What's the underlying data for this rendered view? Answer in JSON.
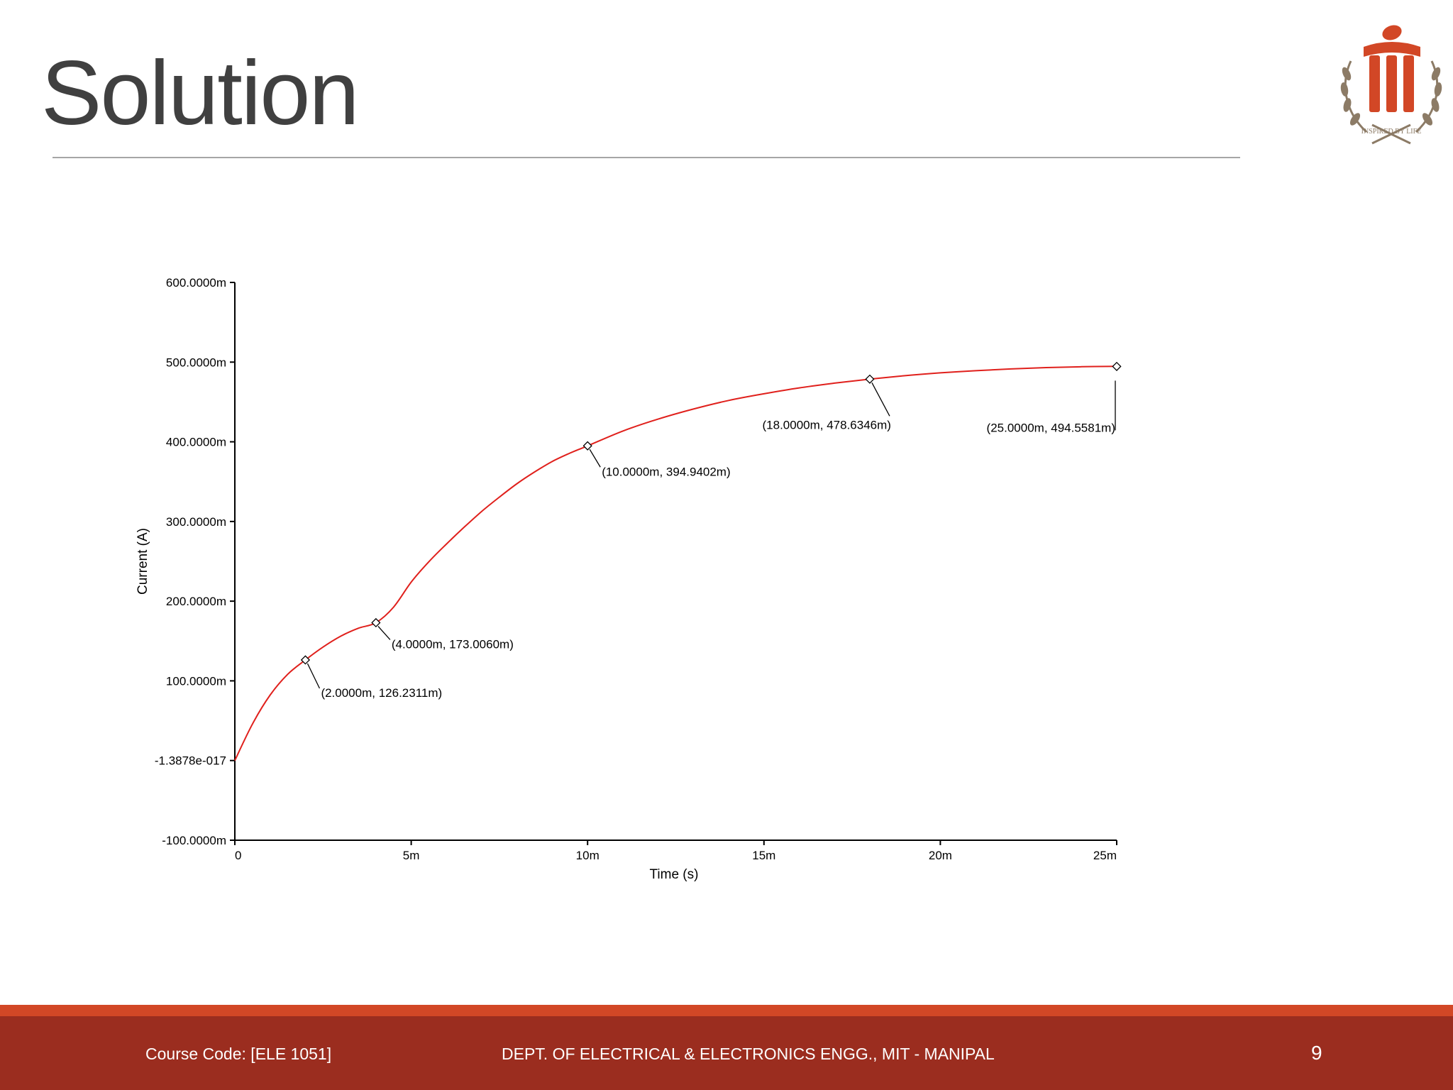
{
  "slide": {
    "title": "Solution"
  },
  "footer": {
    "course_code": "Course Code: [ELE 1051]",
    "department": "DEPT. OF ELECTRICAL & ELECTRONICS ENGG., MIT - MANIPAL",
    "page_number": "9"
  },
  "logo": {
    "icon": "manipal-institute-logo",
    "motto": "INSPIRED BY LIFE",
    "colors": {
      "primary": "#d24726",
      "wreath": "#8c7b66"
    }
  },
  "colors": {
    "curve": "#e0201c",
    "axis": "#000000",
    "footer_bar": "#9b2d1f",
    "footer_stripe": "#d24726",
    "title": "#404040"
  },
  "chart_data": {
    "type": "line",
    "title": "",
    "xlabel": "Time (s)",
    "ylabel": "Current (A)",
    "xlim": [
      0,
      0.025
    ],
    "ylim": [
      -0.1,
      0.6
    ],
    "grid": false,
    "x_ticks": [
      {
        "value": 0,
        "label": "0"
      },
      {
        "value": 0.005,
        "label": "5m"
      },
      {
        "value": 0.01,
        "label": "10m"
      },
      {
        "value": 0.015,
        "label": "15m"
      },
      {
        "value": 0.02,
        "label": "20m"
      },
      {
        "value": 0.025,
        "label": "25m"
      }
    ],
    "y_ticks": [
      {
        "value": 0.6,
        "label": "600.0000m"
      },
      {
        "value": 0.5,
        "label": "500.0000m"
      },
      {
        "value": 0.4,
        "label": "400.0000m"
      },
      {
        "value": 0.3,
        "label": "300.0000m"
      },
      {
        "value": 0.2,
        "label": "200.0000m"
      },
      {
        "value": 0.1,
        "label": "100.0000m"
      },
      {
        "value": 0,
        "label": "-1.3878e-017"
      },
      {
        "value": -0.1,
        "label": "-100.0000m"
      }
    ],
    "series": [
      {
        "x": [
          0,
          0.0005,
          0.001,
          0.0015,
          0.002,
          0.0025,
          0.003,
          0.0035,
          0.004,
          0.0045,
          0.005,
          0.0055,
          0.006,
          0.0065,
          0.007,
          0.0075,
          0.008,
          0.0085,
          0.009,
          0.0095,
          0.01,
          0.011,
          0.012,
          0.013,
          0.014,
          0.015,
          0.016,
          0.017,
          0.018,
          0.019,
          0.02,
          0.021,
          0.022,
          0.023,
          0.024,
          0.025
        ],
        "values": [
          0,
          0.0459,
          0.0821,
          0.1083,
          0.1262,
          0.1424,
          0.156,
          0.166,
          0.173,
          0.1925,
          0.2239,
          0.2495,
          0.2717,
          0.2928,
          0.3127,
          0.3306,
          0.3475,
          0.3622,
          0.3754,
          0.3858,
          0.3949,
          0.4135,
          0.4285,
          0.4411,
          0.4519,
          0.4603,
          0.4677,
          0.4736,
          0.4786,
          0.483,
          0.4865,
          0.4892,
          0.4914,
          0.4931,
          0.4942,
          0.4946
        ]
      }
    ],
    "annotations": [
      {
        "x": 0.002,
        "y": 0.1262311,
        "label": "(2.0000m, 126.2311m)"
      },
      {
        "x": 0.004,
        "y": 0.173006,
        "label": "(4.0000m, 173.0060m)"
      },
      {
        "x": 0.01,
        "y": 0.3949402,
        "label": "(10.0000m, 394.9402m)"
      },
      {
        "x": 0.018,
        "y": 0.4786346,
        "label": "(18.0000m, 478.6346m)"
      },
      {
        "x": 0.025,
        "y": 0.4945581,
        "label": "(25.0000m, 494.5581m)"
      }
    ]
  }
}
